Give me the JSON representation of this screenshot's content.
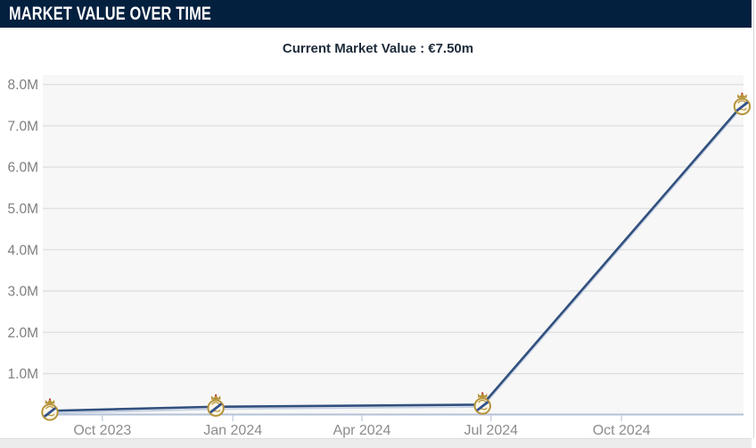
{
  "header": {
    "title": "MARKET VALUE OVER TIME"
  },
  "summary": {
    "current_market_value_label": "Current Market Value : €7.50m"
  },
  "icons": {
    "data_point_marker": "real-madrid-crest-icon"
  },
  "colors": {
    "header_bg": "#04203f",
    "header_text": "#ffffff",
    "subtitle_text": "#1d2b3a",
    "plot_bg": "#f7f7f7",
    "gridline": "#e0e0e0",
    "axis_line": "#b3c0d6",
    "tick": "#c9d3e2",
    "x_tick_label": "#8c8c8c",
    "y_tick_label": "#7f7f7f",
    "series_line": "#31507e",
    "series_line_shadow": "#c4cfe3",
    "crest_gold": "#b49339",
    "crest_cream": "#fbf7e8",
    "crest_navy": "#31508f",
    "crest_red": "#bb3b2e"
  },
  "chart_data": {
    "type": "line",
    "title": "Market Value Over Time",
    "currency_unit": "€ millions",
    "points": [
      {
        "date": "2023-08-25",
        "label": "Aug 2023",
        "value": 0.1
      },
      {
        "date": "2023-12-20",
        "label": "Dec 2023",
        "value": 0.2
      },
      {
        "date": "2024-06-25",
        "label": "Jun 2024",
        "value": 0.25
      },
      {
        "date": "2024-12-25",
        "label": "Dec 2024",
        "value": 7.5
      }
    ],
    "series": [
      {
        "name": "Market value",
        "marker": "real-madrid-crest",
        "values": [
          0.1,
          0.2,
          0.25,
          7.5
        ]
      }
    ],
    "x_ticks": [
      {
        "date": "2023-10-01",
        "label": "Oct 2023"
      },
      {
        "date": "2024-01-01",
        "label": "Jan 2024"
      },
      {
        "date": "2024-04-01",
        "label": "Apr 2024"
      },
      {
        "date": "2024-07-01",
        "label": "Jul 2024"
      },
      {
        "date": "2024-10-01",
        "label": "Oct 2024"
      }
    ],
    "y_ticks": [
      {
        "value": 1,
        "label": "1.0M"
      },
      {
        "value": 2,
        "label": "2.0M"
      },
      {
        "value": 3,
        "label": "3.0M"
      },
      {
        "value": 4,
        "label": "4.0M"
      },
      {
        "value": 5,
        "label": "5.0M"
      },
      {
        "value": 6,
        "label": "6.0M"
      },
      {
        "value": 7,
        "label": "7.0M"
      },
      {
        "value": 8,
        "label": "8.0M"
      }
    ],
    "ylim": [
      0,
      8.23
    ],
    "x_domain": [
      "2023-08-20",
      "2024-12-26"
    ],
    "grid": "horizontal-only",
    "legend": false
  }
}
